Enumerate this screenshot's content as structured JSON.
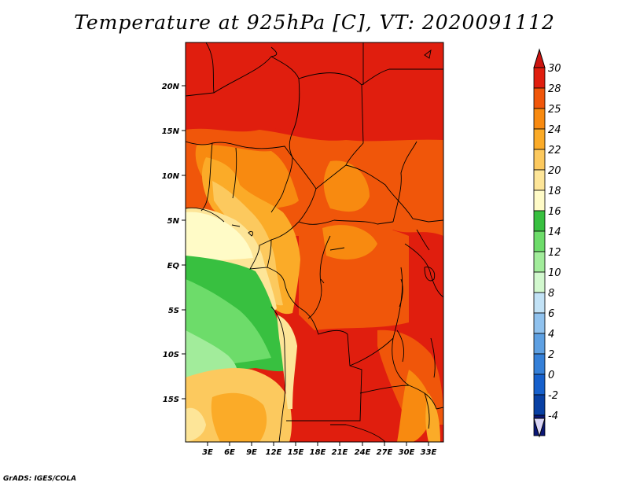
{
  "title": "Temperature at 925hPa [C], VT: 2020091112",
  "credit": "GrADS: IGES/COLA",
  "lat_ticks": [
    "20N",
    "15N",
    "10N",
    "5N",
    "EQ",
    "5S",
    "10S",
    "15S"
  ],
  "lon_ticks": [
    "3E",
    "6E",
    "9E",
    "12E",
    "15E",
    "18E",
    "21E",
    "24E",
    "27E",
    "30E",
    "33E"
  ],
  "colorbar": {
    "labels": [
      "30",
      "28",
      "25",
      "24",
      "22",
      "20",
      "18",
      "16",
      "14",
      "12",
      "10",
      "8",
      "6",
      "4",
      "2",
      "0",
      "-2",
      "-4"
    ],
    "colors": [
      "#e01e0e",
      "#f0560a",
      "#f88a10",
      "#fbab28",
      "#fcc95e",
      "#fde598",
      "#fffbc7",
      "#38c040",
      "#6ddc6a",
      "#a2ec9b",
      "#d2f8ce",
      "#c2e2f6",
      "#90c2ee",
      "#5ea0e2",
      "#3580d8",
      "#1660cc",
      "#0840a4",
      "#0a1676"
    ],
    "over_color": "#cc1410",
    "under_color": "#dad6f6"
  }
}
